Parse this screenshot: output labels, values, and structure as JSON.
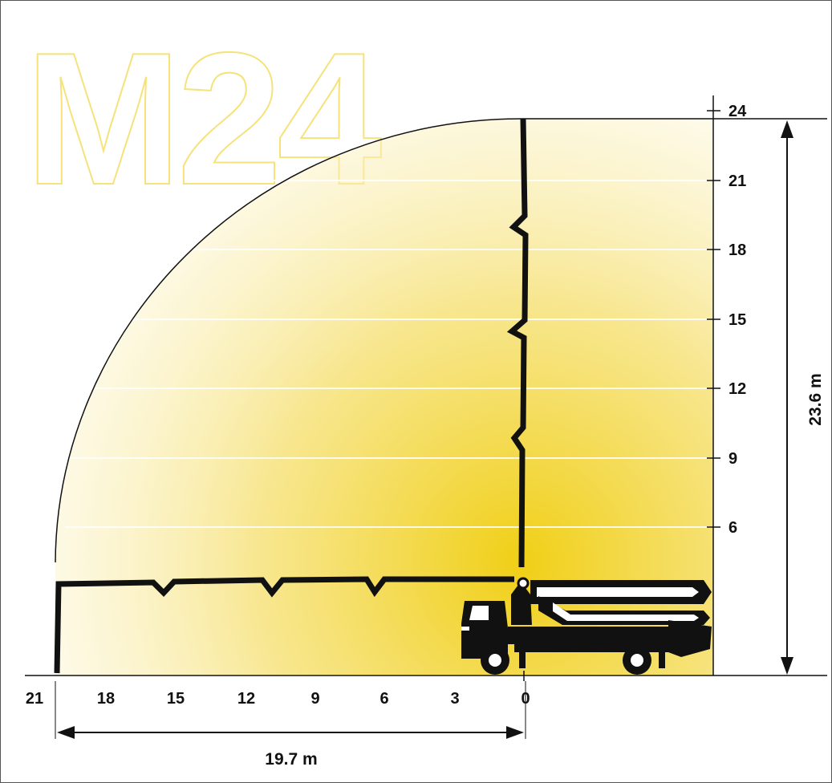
{
  "model": "M24",
  "colors": {
    "accent": "#f2d21b",
    "logo_outline": "#f6e27a",
    "boom": "#111111"
  },
  "x_axis": {
    "ticks": [
      "21",
      "18",
      "15",
      "12",
      "9",
      "6",
      "3",
      "0"
    ]
  },
  "y_axis": {
    "ticks": [
      "24",
      "21",
      "18",
      "15",
      "12",
      "9",
      "6"
    ]
  },
  "dimensions": {
    "horizontal_reach": "19.7 m",
    "vertical_reach": "23.6 m"
  }
}
